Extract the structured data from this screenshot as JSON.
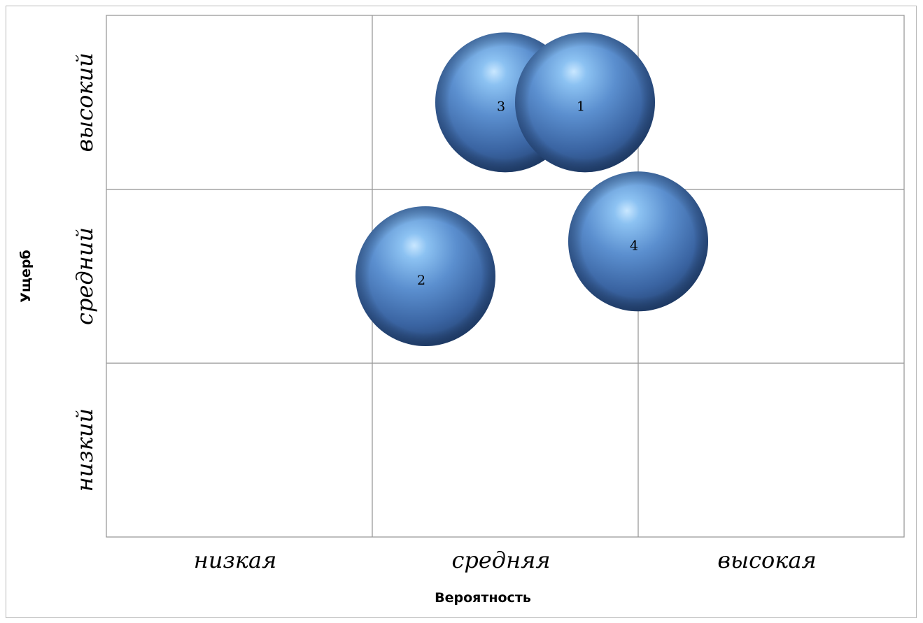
{
  "chart_data": {
    "type": "bubble",
    "title": "",
    "xlabel": "Вероятность",
    "ylabel": "Ущерб",
    "x_categories": [
      "низкая",
      "средняя",
      "высокая"
    ],
    "y_categories": [
      "низкий",
      "средний",
      "высокий"
    ],
    "xlim": [
      0,
      3
    ],
    "ylim": [
      0,
      3
    ],
    "grid": true,
    "bubble_color": "#4f7fbe",
    "points": [
      {
        "label": "1",
        "x": 1.8,
        "y": 2.5,
        "size": 1
      },
      {
        "label": "2",
        "x": 1.2,
        "y": 1.5,
        "size": 1
      },
      {
        "label": "3",
        "x": 1.5,
        "y": 2.5,
        "size": 1
      },
      {
        "label": "4",
        "x": 2.0,
        "y": 1.7,
        "size": 1
      }
    ]
  }
}
